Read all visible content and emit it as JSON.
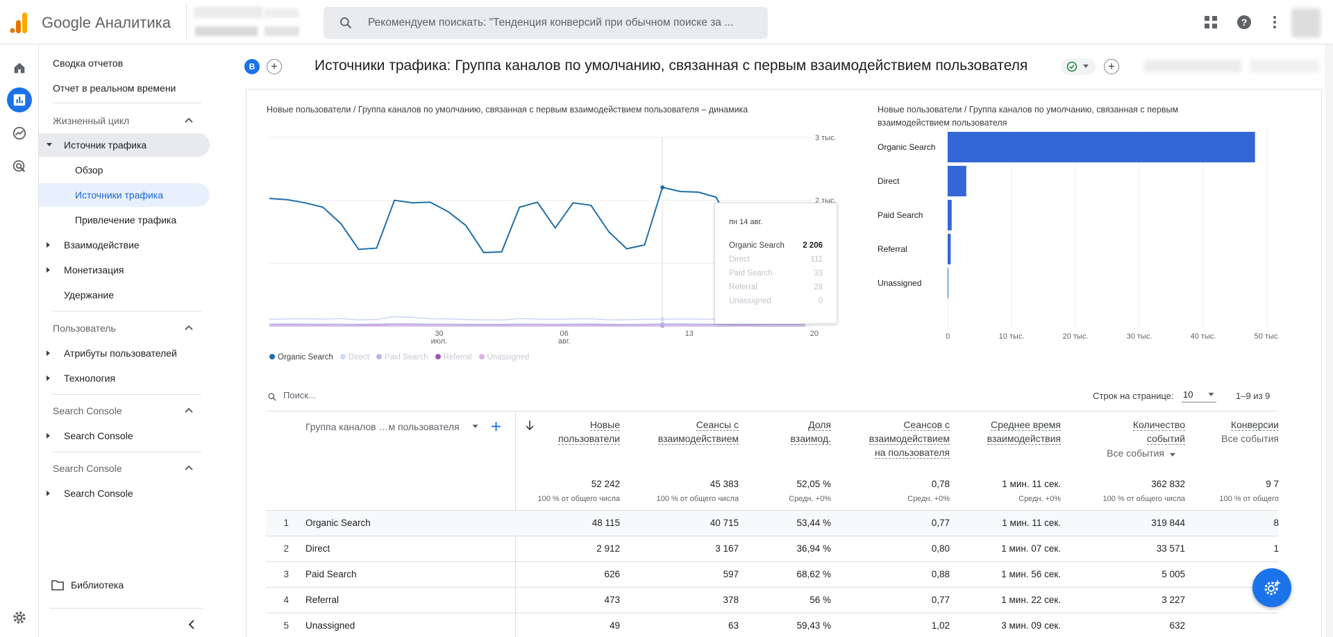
{
  "header": {
    "app_name": "Google Аналитика",
    "search_placeholder": "Рекомендуем поискать: \"Тенденция конверсий при обычном поиске за ..."
  },
  "sidebar": {
    "top_items": [
      "Сводка отчетов",
      "Отчет в реальном времени"
    ],
    "section_lifecycle": "Жизненный цикл",
    "traffic_source": "Источник трафика",
    "overview": "Обзор",
    "traffic_sources": "Источники трафика",
    "acquisition": "Привлечение трафика",
    "engagement": "Взаимодействие",
    "monetization": "Монетизация",
    "retention": "Удержание",
    "section_user": "Пользователь",
    "user_attributes": "Атрибуты пользователей",
    "technology": "Технология",
    "section_sc1": "Search Console",
    "sc1_item": "Search Console",
    "section_sc2": "Search Console",
    "sc2_item": "Search Console",
    "library": "Библиотека"
  },
  "page": {
    "compare_chip": "B",
    "title": "Источники трафика: Группа каналов по умолчанию, связанная с первым взаимодействием пользователя"
  },
  "line_chart": {
    "title": "Новые пользователи / Группа каналов по умолчанию, связанная с первым взаимодействием пользователя – динамика",
    "y_ticks": [
      "3 тыс.",
      "2 тыс."
    ],
    "x_ticks": [
      {
        "l1": "30",
        "l2": "июл."
      },
      {
        "l1": "06",
        "l2": "авг."
      },
      {
        "l1": "13",
        "l2": ""
      },
      {
        "l1": "20",
        "l2": ""
      }
    ],
    "legend": [
      "Organic Search",
      "Direct",
      "Paid Search",
      "Referral",
      "Unassigned"
    ],
    "tooltip": {
      "date": "пн 14 авг.",
      "rows": [
        {
          "name": "Organic Search",
          "value": "2 206"
        },
        {
          "name": "Direct",
          "value": "111"
        },
        {
          "name": "Paid Search",
          "value": "33"
        },
        {
          "name": "Referral",
          "value": "28"
        },
        {
          "name": "Unassigned",
          "value": "0"
        }
      ]
    }
  },
  "bar_chart": {
    "title_l1": "Новые пользователи / Группа каналов по умолчанию, связанная с первым",
    "title_l2": "взаимодействием пользователя",
    "x_ticks": [
      "0",
      "10 тыс.",
      "20 тыс.",
      "30 тыс.",
      "40 тыс.",
      "50 тыс."
    ]
  },
  "chart_data": [
    {
      "type": "line",
      "title": "Новые пользователи / Группа каналов по умолчанию, связанная с первым взаимодействием пользователя – динамика",
      "ylim": [
        0,
        3000
      ],
      "series": [
        {
          "name": "Organic Search",
          "color": "#1f6fa8",
          "values": [
            2030,
            2010,
            1960,
            1890,
            1630,
            1220,
            1240,
            2000,
            1960,
            1970,
            1820,
            1600,
            1170,
            1180,
            1890,
            1970,
            1560,
            1960,
            1920,
            1500,
            1230,
            1290,
            2206,
            2140,
            2130,
            2050,
            1520,
            1250,
            1400,
            1450,
            1480
          ]
        },
        {
          "name": "Direct",
          "color": "#cfd8f5",
          "values": [
            110,
            115,
            118,
            112,
            120,
            100,
            105,
            150,
            140,
            118,
            115,
            105,
            100,
            98,
            120,
            112,
            110,
            115,
            118,
            100,
            102,
            108,
            111,
            115,
            112,
            110,
            100,
            104,
            108,
            112,
            110
          ]
        },
        {
          "name": "Paid Search",
          "color": "#b9b5ef",
          "values": [
            30,
            32,
            31,
            30,
            29,
            28,
            30,
            35,
            33,
            31,
            30,
            28,
            27,
            28,
            31,
            30,
            29,
            31,
            32,
            28,
            27,
            29,
            33,
            32,
            31,
            30,
            28,
            29,
            30,
            31,
            30
          ]
        },
        {
          "name": "Referral",
          "color": "#9b59b6",
          "values": [
            25,
            26,
            25,
            24,
            26,
            22,
            23,
            28,
            27,
            26,
            25,
            23,
            22,
            22,
            26,
            25,
            24,
            26,
            25,
            23,
            22,
            24,
            28,
            27,
            26,
            25,
            23,
            24,
            25,
            26,
            25
          ]
        },
        {
          "name": "Unassigned",
          "color": "#d6b3e0",
          "values": [
            0,
            0,
            0,
            0,
            0,
            0,
            0,
            0,
            0,
            0,
            0,
            0,
            0,
            0,
            0,
            0,
            0,
            0,
            0,
            0,
            0,
            0,
            0,
            0,
            0,
            0,
            0,
            0,
            0,
            0,
            0
          ]
        }
      ]
    },
    {
      "type": "bar",
      "title": "Новые пользователи / Группа каналов по умолчанию, связанная с первым взаимодействием пользователя",
      "orientation": "horizontal",
      "categories": [
        "Organic Search",
        "Direct",
        "Paid Search",
        "Referral",
        "Unassigned"
      ],
      "values": [
        48115,
        2912,
        626,
        473,
        49
      ],
      "xlim": [
        0,
        50000
      ],
      "color": "#3367d6"
    }
  ],
  "table": {
    "search_placeholder": "Поиск...",
    "rows_per_page_label": "Строк на странице:",
    "rows_per_page": "10",
    "range": "1–9 из 9",
    "dim_header": "Группа каналов …м пользователя",
    "columns": [
      {
        "h1": "Новые",
        "h2": "пользователи",
        "h3": "",
        "total": "52 242",
        "sub": "100 % от общего числа"
      },
      {
        "h1": "Сеансы с",
        "h2": "взаимодействием",
        "h3": "",
        "total": "45 383",
        "sub": "100 % от общего числа"
      },
      {
        "h1": "Доля",
        "h2": "взаимод.",
        "h3": "",
        "total": "52,05 %",
        "sub": "Средн. +0%"
      },
      {
        "h1": "Сеансов с",
        "h2": "взаимодействием",
        "h3": "на пользователя",
        "total": "0,78",
        "sub": "Средн. +0%"
      },
      {
        "h1": "Среднее время",
        "h2": "взаимодействия",
        "h3": "",
        "total": "1 мин. 11 сек.",
        "sub": "Средн. +0%"
      },
      {
        "h1": "Количество",
        "h2": "событий",
        "h3": "",
        "total": "362 832",
        "sub": "100 % от общего числа",
        "filter": "Все события"
      },
      {
        "h1": "Конверсии",
        "h2": "Все события",
        "h3": "",
        "total": "9 7",
        "sub": "100 % от общего"
      }
    ],
    "rows": [
      {
        "idx": "1",
        "name": "Organic Search",
        "cells": [
          "48 115",
          "40 715",
          "53,44 %",
          "0,77",
          "1 мин. 11 сек.",
          "319 844",
          "8"
        ]
      },
      {
        "idx": "2",
        "name": "Direct",
        "cells": [
          "2 912",
          "3 167",
          "36,94 %",
          "0,80",
          "1 мин. 07 сек.",
          "33 571",
          "1"
        ]
      },
      {
        "idx": "3",
        "name": "Paid Search",
        "cells": [
          "626",
          "597",
          "68,62 %",
          "0,88",
          "1 мин. 56 сек.",
          "5 005",
          ""
        ]
      },
      {
        "idx": "4",
        "name": "Referral",
        "cells": [
          "473",
          "378",
          "56 %",
          "0,77",
          "1 мин. 22 сек.",
          "3 227",
          ""
        ]
      },
      {
        "idx": "5",
        "name": "Unassigned",
        "cells": [
          "49",
          "63",
          "59,43 %",
          "1,02",
          "3 мин. 09 сек.",
          "632",
          ""
        ]
      }
    ]
  }
}
